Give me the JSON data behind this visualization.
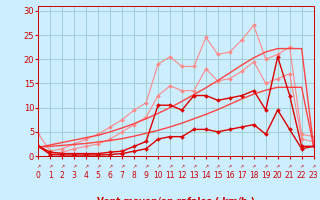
{
  "x": [
    0,
    1,
    2,
    3,
    4,
    5,
    6,
    7,
    8,
    9,
    10,
    11,
    12,
    13,
    14,
    15,
    16,
    17,
    18,
    19,
    20,
    21,
    22,
    23
  ],
  "series": [
    {
      "name": "rafales_high",
      "color": "#ff8888",
      "lw": 0.8,
      "marker": "D",
      "ms": 2.0,
      "y": [
        4.5,
        1.0,
        1.5,
        2.5,
        3.5,
        4.5,
        6.0,
        7.5,
        9.5,
        11.0,
        19.0,
        20.5,
        18.5,
        18.5,
        24.5,
        21.0,
        21.5,
        24.0,
        27.0,
        20.0,
        21.0,
        22.5,
        4.5,
        4.0
      ]
    },
    {
      "name": "rafales_low",
      "color": "#ff8888",
      "lw": 0.8,
      "marker": "D",
      "ms": 2.0,
      "y": [
        2.0,
        0.5,
        0.8,
        1.5,
        2.0,
        2.5,
        3.5,
        5.0,
        6.5,
        8.0,
        12.5,
        14.5,
        13.5,
        13.5,
        18.0,
        15.5,
        16.0,
        17.5,
        19.5,
        15.0,
        16.0,
        17.0,
        3.5,
        3.0
      ]
    },
    {
      "name": "linear_high",
      "color": "#ff4444",
      "lw": 1.0,
      "marker": null,
      "ms": 0,
      "y": [
        1.8,
        2.3,
        2.8,
        3.3,
        3.8,
        4.3,
        5.0,
        5.8,
        6.7,
        7.7,
        8.8,
        10.0,
        11.3,
        12.7,
        14.1,
        15.6,
        17.2,
        18.8,
        20.3,
        21.5,
        22.2,
        22.2,
        22.2,
        2.0
      ]
    },
    {
      "name": "linear_low",
      "color": "#ff4444",
      "lw": 1.0,
      "marker": null,
      "ms": 0,
      "y": [
        1.8,
        2.0,
        2.2,
        2.4,
        2.6,
        2.9,
        3.2,
        3.6,
        4.1,
        4.7,
        5.3,
        6.0,
        6.8,
        7.7,
        8.6,
        9.6,
        10.7,
        11.8,
        12.8,
        13.6,
        14.2,
        14.2,
        14.2,
        2.0
      ]
    },
    {
      "name": "vent_high",
      "color": "#dd0000",
      "lw": 1.0,
      "marker": "D",
      "ms": 2.0,
      "y": [
        2.0,
        0.8,
        0.5,
        0.5,
        0.5,
        0.5,
        0.8,
        1.0,
        2.0,
        3.0,
        10.5,
        10.5,
        9.5,
        12.5,
        12.5,
        11.5,
        12.0,
        12.5,
        13.5,
        9.5,
        20.5,
        12.5,
        2.0,
        2.0
      ]
    },
    {
      "name": "vent_low",
      "color": "#dd0000",
      "lw": 1.0,
      "marker": "D",
      "ms": 2.0,
      "y": [
        2.0,
        0.3,
        0.2,
        0.2,
        0.2,
        0.2,
        0.3,
        0.5,
        1.0,
        1.5,
        3.5,
        4.0,
        4.0,
        5.5,
        5.5,
        5.0,
        5.5,
        6.0,
        6.5,
        4.5,
        9.5,
        5.5,
        1.5,
        2.0
      ]
    }
  ],
  "xlim": [
    0,
    23
  ],
  "ylim": [
    0,
    31
  ],
  "yticks": [
    0,
    5,
    10,
    15,
    20,
    25,
    30
  ],
  "xticks": [
    0,
    1,
    2,
    3,
    4,
    5,
    6,
    7,
    8,
    9,
    10,
    11,
    12,
    13,
    14,
    15,
    16,
    17,
    18,
    19,
    20,
    21,
    22,
    23
  ],
  "xlabel": "Vent moyen/en rafales ( km/h )",
  "bg_color": "#cceeff",
  "grid_color": "#99cccc",
  "tick_color": "#cc0000",
  "label_color": "#cc0000"
}
